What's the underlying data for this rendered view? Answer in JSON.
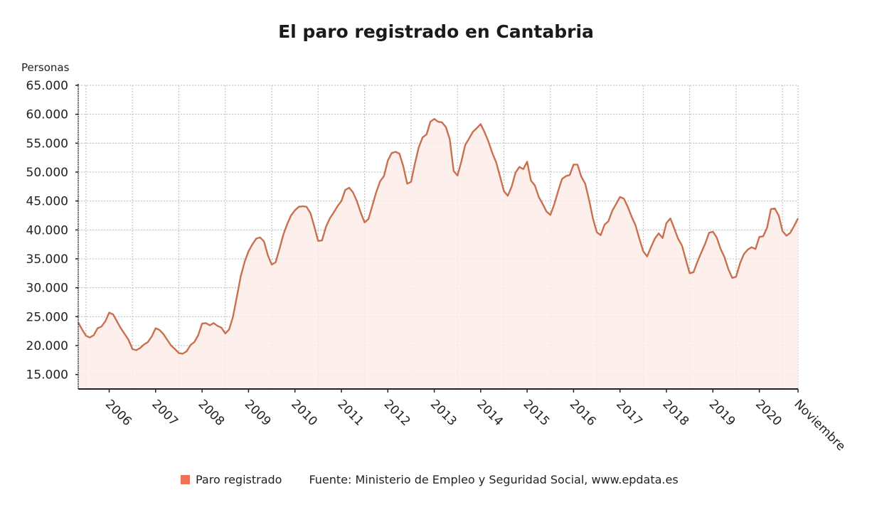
{
  "chart_data": {
    "type": "area",
    "title": "El paro registrado en Cantabria",
    "ylabel": "Personas",
    "xlabel": "",
    "x_start": "2005-05",
    "x_end": "2020-11",
    "x_frequency": "monthly",
    "ylim": [
      12500,
      65000
    ],
    "yticks": [
      15000,
      20000,
      25000,
      30000,
      35000,
      40000,
      45000,
      50000,
      55000,
      60000,
      65000
    ],
    "ytick_labels": [
      "15.000",
      "20.000",
      "25.000",
      "30.000",
      "35.000",
      "40.000",
      "45.000",
      "50.000",
      "55.000",
      "60.000",
      "65.000"
    ],
    "xtick_labels": [
      "2006",
      "2007",
      "2008",
      "2009",
      "2010",
      "2011",
      "2012",
      "2013",
      "2014",
      "2015",
      "2016",
      "2017",
      "2018",
      "2019",
      "2020",
      "Noviembre"
    ],
    "grid": true,
    "legend_position": "bottom",
    "series": [
      {
        "name": "Paro registrado",
        "color": "#c8704f",
        "legend_color": "#ef7255",
        "fill_color": "#fdece8",
        "values": [
          24000,
          22800,
          21700,
          21400,
          21800,
          23000,
          23300,
          24200,
          25700,
          25400,
          24200,
          23000,
          22000,
          21000,
          19400,
          19200,
          19600,
          20200,
          20600,
          21600,
          23000,
          22700,
          22000,
          21000,
          20000,
          19400,
          18700,
          18600,
          19000,
          20100,
          20600,
          21800,
          23800,
          23900,
          23500,
          23900,
          23400,
          23100,
          22100,
          22800,
          25000,
          28500,
          32000,
          34500,
          36300,
          37500,
          38500,
          38700,
          38000,
          35600,
          34000,
          34400,
          36700,
          39200,
          41000,
          42500,
          43400,
          44000,
          44100,
          44000,
          42900,
          40600,
          38100,
          38200,
          40500,
          42000,
          43000,
          44100,
          45000,
          46900,
          47300,
          46500,
          45000,
          43000,
          41300,
          41900,
          44200,
          46500,
          48400,
          49300,
          52000,
          53300,
          53500,
          53200,
          51000,
          48000,
          48300,
          51500,
          54300,
          56000,
          56500,
          58700,
          59200,
          58700,
          58600,
          57800,
          55700,
          50200,
          49400,
          51800,
          54700,
          55800,
          57000,
          57600,
          58300,
          56900,
          55300,
          53300,
          51700,
          49200,
          46700,
          45900,
          47500,
          49900,
          50900,
          50500,
          51800,
          48500,
          47700,
          45700,
          44500,
          43200,
          42600,
          44400,
          46700,
          48800,
          49300,
          49500,
          51300,
          51300,
          49200,
          48000,
          45200,
          42000,
          39600,
          39100,
          40900,
          41500,
          43300,
          44500,
          45700,
          45400,
          44000,
          42300,
          40800,
          38500,
          36300,
          35400,
          37000,
          38500,
          39400,
          38600,
          41200,
          42000,
          40300,
          38500,
          37300,
          34900,
          32500,
          32700,
          34500,
          36100,
          37600,
          39500,
          39700,
          38700,
          36700,
          35300,
          33200,
          31700,
          31900,
          34200,
          35800,
          36600,
          37000,
          36700,
          38800,
          38900,
          40400,
          43600,
          43700,
          42500,
          39800,
          39000,
          39500,
          40700,
          42000
        ]
      }
    ],
    "source": "Fuente: Ministerio de Empleo y Seguridad Social, www.epdata.es"
  }
}
